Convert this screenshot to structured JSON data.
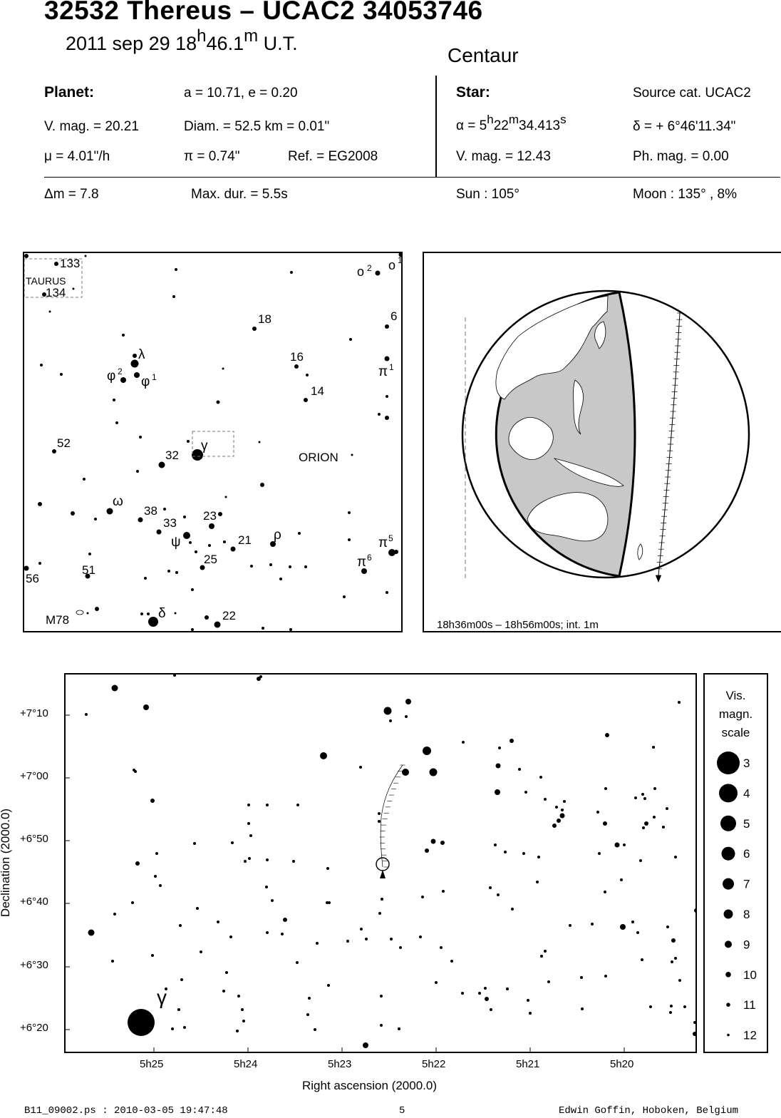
{
  "header": {
    "title": "32532 Thereus  –  UCAC2 34053746",
    "date": "2011 sep 29  18",
    "date_h": "h",
    "date_min": "46.1",
    "date_m": "m",
    "date_ut": " U.T.",
    "observer_site": "Centaur"
  },
  "planet": {
    "heading": "Planet:",
    "orbit": "a = 10.71, e = 0.20",
    "vmag": "V. mag. = 20.21",
    "diam": "Diam. = 52.5 km = 0.01\"",
    "mu": "μ =  4.01\"/h",
    "pi": "π =  0.74\"",
    "ref": "Ref. = EG2008"
  },
  "star": {
    "heading": "Star:",
    "source": "Source cat.  UCAC2",
    "alpha_prefix": "α =  5",
    "alpha_h": "h",
    "alpha_min": "22",
    "alpha_m": "m",
    "alpha_sec": "34.413",
    "alpha_s": "s",
    "delta": "δ = + 6°46'11.34\"",
    "vmag": "V. mag. = 12.43",
    "phmag": "Ph. mag. =  0.00"
  },
  "event": {
    "delta_m": "Δm = 7.8",
    "max_dur": "Max. dur. = 5.5s",
    "sun": "Sun : 105°",
    "moon": "Moon : 135° ,  8%"
  },
  "finder_chart": {
    "labels": {
      "n133": "133",
      "taurus": "TAURUS",
      "n134": "134",
      "omicron2": "ο",
      "omicron2_sup": "2",
      "omicron1": "ο",
      "omicron1_sup": "1",
      "n18": "18",
      "n6": "6",
      "lambda": "λ",
      "n16": "16",
      "pi1": "π",
      "pi1_sup": "1",
      "phi2": "φ",
      "phi2_sup": "2",
      "phi1": "φ",
      "phi1_sup": "1",
      "n14": "14",
      "n52": "52",
      "n32": "32",
      "gamma": "γ",
      "orion": "ORION",
      "omega": "ω",
      "n38": "38",
      "n33": "33",
      "n23": "23",
      "rho": "ρ",
      "psi": "ψ",
      "n21": "21",
      "n25": "25",
      "pi5": "π",
      "pi5_sup": "5",
      "pi6": "π",
      "pi6_sup": "6",
      "n56": "56",
      "n51": "51",
      "delta": "δ",
      "n22": "22",
      "m78": "M78"
    }
  },
  "globe": {
    "caption": "18h36m00s – 18h56m00s; int.  1m"
  },
  "detail_chart": {
    "type": "scatter",
    "xlabel": "Right ascension (2000.0)",
    "ylabel": "Declination (2000.0)",
    "x_ticks": [
      "5h25",
      "5h24",
      "5h23",
      "5h22",
      "5h21",
      "5h20"
    ],
    "y_ticks": [
      "+7°10",
      "+7°00",
      "+6°50",
      "+6°40",
      "+6°30",
      "+6°20"
    ],
    "gamma_label": "γ"
  },
  "mag_scale": {
    "title_1": "Vis.",
    "title_2": "magn.",
    "title_3": "scale",
    "values": [
      "3",
      "4",
      "5",
      "6",
      "7",
      "8",
      "9",
      "10",
      "11",
      "12"
    ]
  },
  "footer": {
    "file": "B11_09002.ps : 2010-03-05 19:47:48",
    "page": "5",
    "author": "Edwin Goffin, Hoboken, Belgium"
  }
}
